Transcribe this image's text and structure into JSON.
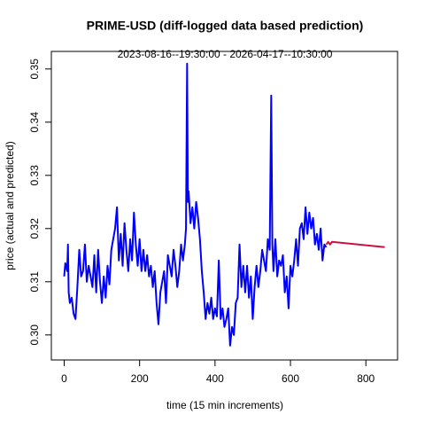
{
  "chart_data": {
    "type": "line",
    "title": "PRIME-USD (diff-logged data based prediction)",
    "subtitle": "2023-08-16--19:30:00  -  2026-04-17--10:30:00",
    "x_label": "time (15 min increments)",
    "y_label": "price (actual and predicted)",
    "xlim": [
      -34,
      884
    ],
    "ylim": [
      0.2953,
      0.3533
    ],
    "xticks": [
      0,
      200,
      400,
      600,
      800
    ],
    "yticks": [
      {
        "value": 0.3,
        "label": "0.30"
      },
      0.31,
      0.32,
      0.33,
      0.34,
      0.35
    ],
    "grid": false,
    "series": [
      {
        "color": "#0000ff",
        "x": [
          0,
          3,
          8,
          10,
          12,
          15,
          20,
          25,
          30,
          35,
          40,
          45,
          50,
          55,
          60,
          65,
          70,
          75,
          80,
          85,
          90,
          95,
          100,
          105,
          110,
          115,
          120,
          125,
          130,
          135,
          140,
          145,
          150,
          155,
          160,
          165,
          170,
          175,
          180,
          185,
          190,
          195,
          200,
          205,
          210,
          215,
          220,
          225,
          230,
          235,
          240,
          245,
          250,
          255,
          260,
          265,
          270,
          275,
          280,
          285,
          290,
          295,
          300,
          305,
          310,
          315,
          320,
          323,
          326,
          328,
          330,
          335,
          340,
          345,
          350,
          355,
          360,
          365,
          370,
          375,
          380,
          385,
          390,
          395,
          400,
          405,
          410,
          415,
          420,
          425,
          430,
          435,
          440,
          445,
          450,
          455,
          460,
          465,
          470,
          475,
          480,
          485,
          490,
          495,
          500,
          505,
          510,
          515,
          520,
          525,
          530,
          535,
          540,
          545,
          549,
          552,
          555,
          560,
          565,
          570,
          575,
          580,
          585,
          590,
          595,
          600,
          605,
          610,
          615,
          620,
          625,
          630,
          635,
          640,
          645,
          650,
          655,
          660,
          665,
          670,
          675,
          680,
          685,
          690,
          695
        ],
        "values": [
          0.311,
          0.3135,
          0.312,
          0.317,
          0.308,
          0.306,
          0.307,
          0.304,
          0.303,
          0.309,
          0.316,
          0.311,
          0.312,
          0.317,
          0.31,
          0.313,
          0.311,
          0.309,
          0.315,
          0.308,
          0.316,
          0.31,
          0.306,
          0.311,
          0.307,
          0.313,
          0.3095,
          0.316,
          0.318,
          0.32,
          0.324,
          0.314,
          0.319,
          0.313,
          0.321,
          0.316,
          0.312,
          0.318,
          0.314,
          0.323,
          0.317,
          0.313,
          0.318,
          0.312,
          0.316,
          0.312,
          0.315,
          0.311,
          0.313,
          0.309,
          0.312,
          0.306,
          0.302,
          0.308,
          0.31,
          0.312,
          0.306,
          0.315,
          0.313,
          0.311,
          0.316,
          0.313,
          0.309,
          0.312,
          0.317,
          0.314,
          0.317,
          0.32,
          0.351,
          0.325,
          0.327,
          0.321,
          0.324,
          0.32,
          0.325,
          0.322,
          0.318,
          0.312,
          0.308,
          0.303,
          0.306,
          0.304,
          0.307,
          0.303,
          0.305,
          0.3035,
          0.314,
          0.303,
          0.305,
          0.3015,
          0.303,
          0.305,
          0.298,
          0.3015,
          0.3,
          0.306,
          0.307,
          0.317,
          0.309,
          0.313,
          0.308,
          0.313,
          0.307,
          0.311,
          0.303,
          0.309,
          0.313,
          0.309,
          0.312,
          0.316,
          0.314,
          0.312,
          0.318,
          0.316,
          0.345,
          0.317,
          0.312,
          0.318,
          0.311,
          0.314,
          0.313,
          0.315,
          0.308,
          0.311,
          0.305,
          0.313,
          0.311,
          0.314,
          0.318,
          0.313,
          0.32,
          0.321,
          0.318,
          0.324,
          0.319,
          0.323,
          0.32,
          0.322,
          0.317,
          0.319,
          0.316,
          0.32,
          0.314,
          0.317,
          0.3165
        ]
      },
      {
        "color": "#cc1040",
        "x": [
          695,
          700,
          705,
          710,
          850
        ],
        "values": [
          0.317,
          0.3175,
          0.317,
          0.3175,
          0.3165
        ]
      }
    ]
  }
}
